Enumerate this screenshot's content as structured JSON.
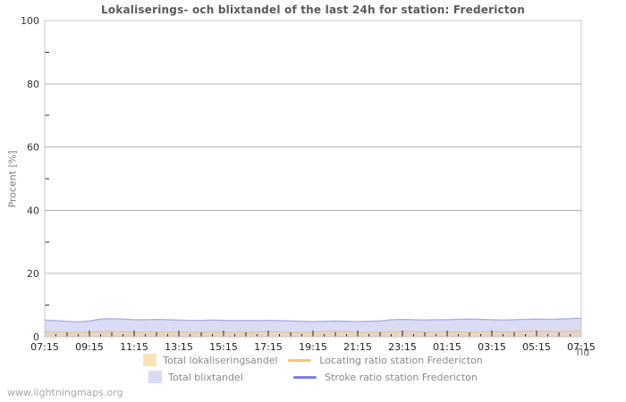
{
  "page": {
    "watermark": "www.lightningmaps.org"
  },
  "chart_data": {
    "type": "area",
    "title": "Lokaliserings- och blixtandel of the last 24h for station: Fredericton",
    "xlabel": "Tid",
    "ylabel": "Procent  [%]",
    "ylim": [
      0,
      100
    ],
    "yticks": [
      0,
      20,
      40,
      60,
      80,
      100
    ],
    "y_minor_ticks": [
      10,
      30,
      50,
      70,
      90
    ],
    "grid": "horizontal-major",
    "legend_position": "bottom",
    "frame_color": "#c9c9c9",
    "gridline_color": "#b4b4b4",
    "x_labels": [
      "07:15",
      "09:15",
      "11:15",
      "13:15",
      "15:15",
      "17:15",
      "19:15",
      "21:15",
      "23:15",
      "01:15",
      "03:15",
      "05:15",
      "07:15"
    ],
    "x": [
      "07:15",
      "07:45",
      "08:15",
      "08:45",
      "09:15",
      "09:45",
      "10:15",
      "10:45",
      "11:15",
      "11:45",
      "12:15",
      "12:45",
      "13:15",
      "13:45",
      "14:15",
      "14:45",
      "15:15",
      "15:45",
      "16:15",
      "16:45",
      "17:15",
      "17:45",
      "18:15",
      "18:45",
      "19:15",
      "19:45",
      "20:15",
      "20:45",
      "21:15",
      "21:45",
      "22:15",
      "22:45",
      "23:15",
      "23:45",
      "00:15",
      "00:45",
      "01:15",
      "01:45",
      "02:15",
      "02:45",
      "03:15",
      "03:45",
      "04:15",
      "04:45",
      "05:15",
      "05:45",
      "06:15",
      "06:45",
      "07:15"
    ],
    "series": [
      {
        "name": "Total lokaliseringsandel",
        "kind": "area",
        "color": "#fae3b4",
        "plot_fill": "#e9d4c5",
        "values": [
          1.6,
          1.5,
          1.4,
          1.4,
          1.5,
          1.6,
          1.7,
          1.6,
          1.5,
          1.5,
          1.6,
          1.5,
          1.5,
          1.4,
          1.5,
          1.6,
          1.5,
          1.4,
          1.5,
          1.5,
          1.6,
          1.5,
          1.4,
          1.4,
          1.5,
          1.6,
          1.7,
          1.6,
          1.5,
          1.4,
          1.5,
          1.6,
          1.7,
          1.6,
          1.5,
          1.5,
          1.6,
          1.5,
          1.4,
          1.5,
          1.6,
          1.5,
          1.6,
          1.7,
          1.8,
          1.7,
          1.6,
          1.7,
          1.8
        ]
      },
      {
        "name": "Total blixtandel",
        "kind": "area",
        "color": "#dadcf6",
        "plot_fill": "#d9dcf4",
        "values": [
          5.3,
          5.1,
          4.9,
          4.7,
          5.0,
          5.6,
          5.7,
          5.6,
          5.4,
          5.4,
          5.5,
          5.4,
          5.3,
          5.2,
          5.2,
          5.3,
          5.2,
          5.1,
          5.2,
          5.1,
          5.2,
          5.1,
          5.0,
          4.9,
          4.8,
          4.9,
          5.0,
          4.9,
          4.8,
          4.9,
          5.0,
          5.4,
          5.5,
          5.4,
          5.3,
          5.4,
          5.4,
          5.5,
          5.6,
          5.5,
          5.4,
          5.3,
          5.4,
          5.5,
          5.6,
          5.5,
          5.6,
          5.7,
          5.9
        ]
      },
      {
        "name": "Locating ratio station Fredericton",
        "kind": "line",
        "color": "#f2c87d",
        "plot_stroke": "#e8c290",
        "values": [
          1.6,
          1.5,
          1.4,
          1.4,
          1.5,
          1.6,
          1.7,
          1.6,
          1.5,
          1.5,
          1.6,
          1.5,
          1.5,
          1.4,
          1.5,
          1.6,
          1.5,
          1.4,
          1.5,
          1.5,
          1.6,
          1.5,
          1.4,
          1.4,
          1.5,
          1.6,
          1.7,
          1.6,
          1.5,
          1.4,
          1.5,
          1.6,
          1.7,
          1.6,
          1.5,
          1.5,
          1.6,
          1.5,
          1.4,
          1.5,
          1.6,
          1.5,
          1.6,
          1.7,
          1.8,
          1.7,
          1.6,
          1.7,
          1.8
        ]
      },
      {
        "name": "Stroke ratio station Fredericton",
        "kind": "line",
        "color": "#7d82d9",
        "plot_stroke": "#a9aee3",
        "values": [
          5.3,
          5.1,
          4.9,
          4.7,
          5.0,
          5.6,
          5.7,
          5.6,
          5.4,
          5.4,
          5.5,
          5.4,
          5.3,
          5.2,
          5.2,
          5.3,
          5.2,
          5.1,
          5.2,
          5.1,
          5.2,
          5.1,
          5.0,
          4.9,
          4.8,
          4.9,
          5.0,
          4.9,
          4.8,
          4.9,
          5.0,
          5.4,
          5.5,
          5.4,
          5.3,
          5.4,
          5.4,
          5.5,
          5.6,
          5.5,
          5.4,
          5.3,
          5.4,
          5.5,
          5.6,
          5.5,
          5.6,
          5.7,
          5.9
        ]
      }
    ]
  }
}
